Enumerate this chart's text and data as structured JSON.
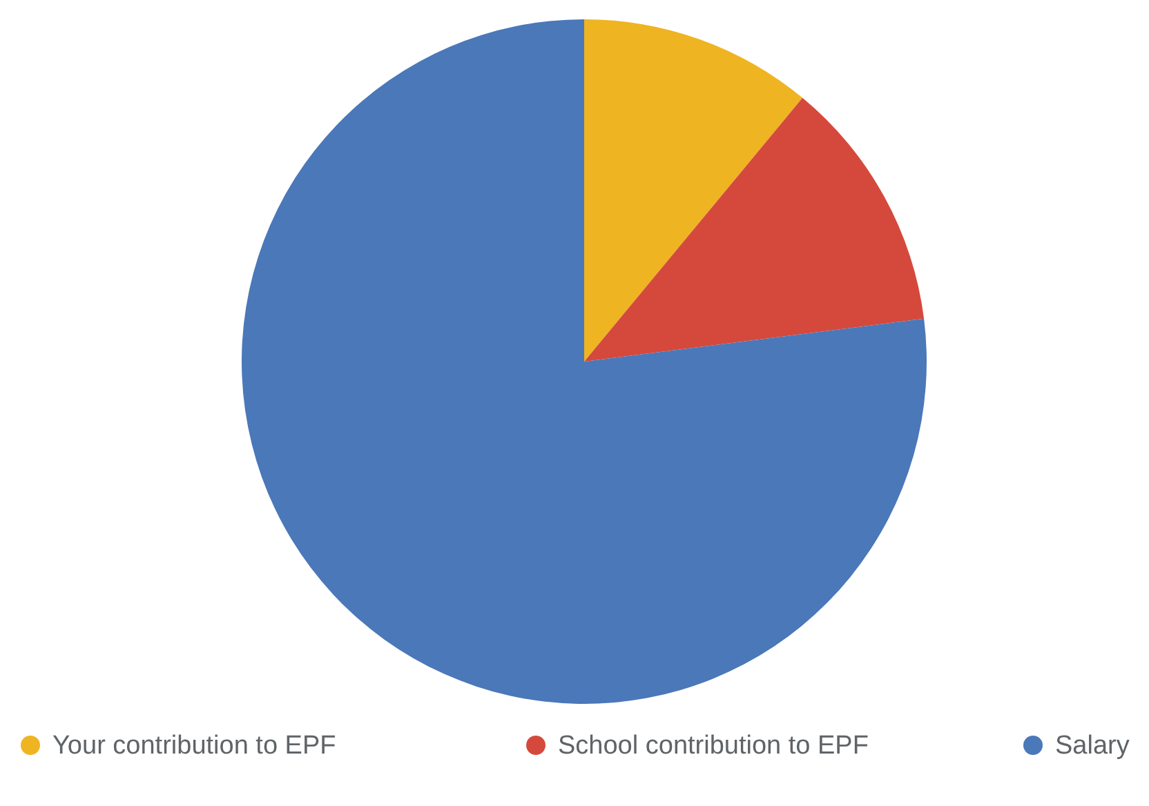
{
  "chart_data": {
    "type": "pie",
    "categories": [
      "Your contribution to EPF",
      "School contribution to EPF",
      "Salary"
    ],
    "values": [
      11,
      12,
      77
    ],
    "colors": [
      "#eeb422",
      "#d5493c",
      "#4a78b9"
    ],
    "legend": "bottom"
  }
}
